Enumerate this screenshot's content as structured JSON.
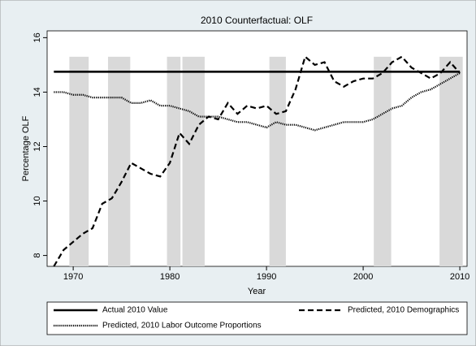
{
  "chart_data": {
    "type": "line",
    "title": "2010 Counterfactual: OLF",
    "x_label": "Year",
    "y_label": "Percentage OLF",
    "xlim": [
      1967.3,
      2010.75
    ],
    "ylim": [
      7.6,
      16.25
    ],
    "xticks": [
      1970,
      1980,
      1990,
      2000,
      2010
    ],
    "yticks": [
      8,
      10,
      12,
      14,
      16
    ],
    "shading": {
      "color": "#d9d9d9",
      "top": 15.3,
      "periods": [
        [
          1969.6,
          1971.6
        ],
        [
          1973.6,
          1975.9
        ],
        [
          1979.7,
          1981.1
        ],
        [
          1981.3,
          1983.6
        ],
        [
          1990.3,
          1992.0
        ],
        [
          2001.1,
          2002.9
        ],
        [
          2007.9,
          2010.3
        ]
      ]
    },
    "x": [
      1968,
      1969,
      1970,
      1971,
      1972,
      1973,
      1974,
      1975,
      1976,
      1977,
      1978,
      1979,
      1980,
      1981,
      1982,
      1983,
      1984,
      1985,
      1986,
      1987,
      1988,
      1989,
      1990,
      1991,
      1992,
      1993,
      1994,
      1995,
      1996,
      1997,
      1998,
      1999,
      2000,
      2001,
      2002,
      2003,
      2004,
      2005,
      2006,
      2007,
      2008,
      2009,
      2010
    ],
    "series": [
      {
        "name": "Actual 2010 Value",
        "color": "#000000",
        "style": "solid",
        "values": [
          14.75,
          14.75,
          14.75,
          14.75,
          14.75,
          14.75,
          14.75,
          14.75,
          14.75,
          14.75,
          14.75,
          14.75,
          14.75,
          14.75,
          14.75,
          14.75,
          14.75,
          14.75,
          14.75,
          14.75,
          14.75,
          14.75,
          14.75,
          14.75,
          14.75,
          14.75,
          14.75,
          14.75,
          14.75,
          14.75,
          14.75,
          14.75,
          14.75,
          14.75,
          14.75,
          14.75,
          14.75,
          14.75,
          14.75,
          14.75,
          14.75,
          14.75,
          14.75
        ]
      },
      {
        "name": "Predicted, 2010 Demographics",
        "color": "#000000",
        "style": "dashed",
        "values": [
          7.6,
          8.2,
          8.5,
          8.8,
          9.0,
          9.9,
          10.1,
          10.7,
          11.4,
          11.2,
          11.0,
          10.9,
          11.4,
          12.5,
          12.1,
          12.8,
          13.1,
          13.0,
          13.6,
          13.2,
          13.5,
          13.4,
          13.5,
          13.2,
          13.3,
          14.1,
          15.3,
          15.0,
          15.1,
          14.4,
          14.2,
          14.4,
          14.5,
          14.5,
          14.7,
          15.1,
          15.3,
          14.9,
          14.7,
          14.5,
          14.7,
          15.1,
          14.7
        ]
      },
      {
        "name": "Predicted, 2010 Labor Outcome Proportions",
        "color": "#000000",
        "style": "dotted",
        "values": [
          14.0,
          14.0,
          13.9,
          13.9,
          13.8,
          13.8,
          13.8,
          13.8,
          13.6,
          13.6,
          13.7,
          13.5,
          13.5,
          13.4,
          13.3,
          13.1,
          13.1,
          13.1,
          13.0,
          12.9,
          12.9,
          12.8,
          12.7,
          12.9,
          12.8,
          12.8,
          12.7,
          12.6,
          12.7,
          12.8,
          12.9,
          12.9,
          12.9,
          13.0,
          13.2,
          13.4,
          13.5,
          13.8,
          14.0,
          14.1,
          14.3,
          14.5,
          14.7
        ]
      }
    ]
  }
}
